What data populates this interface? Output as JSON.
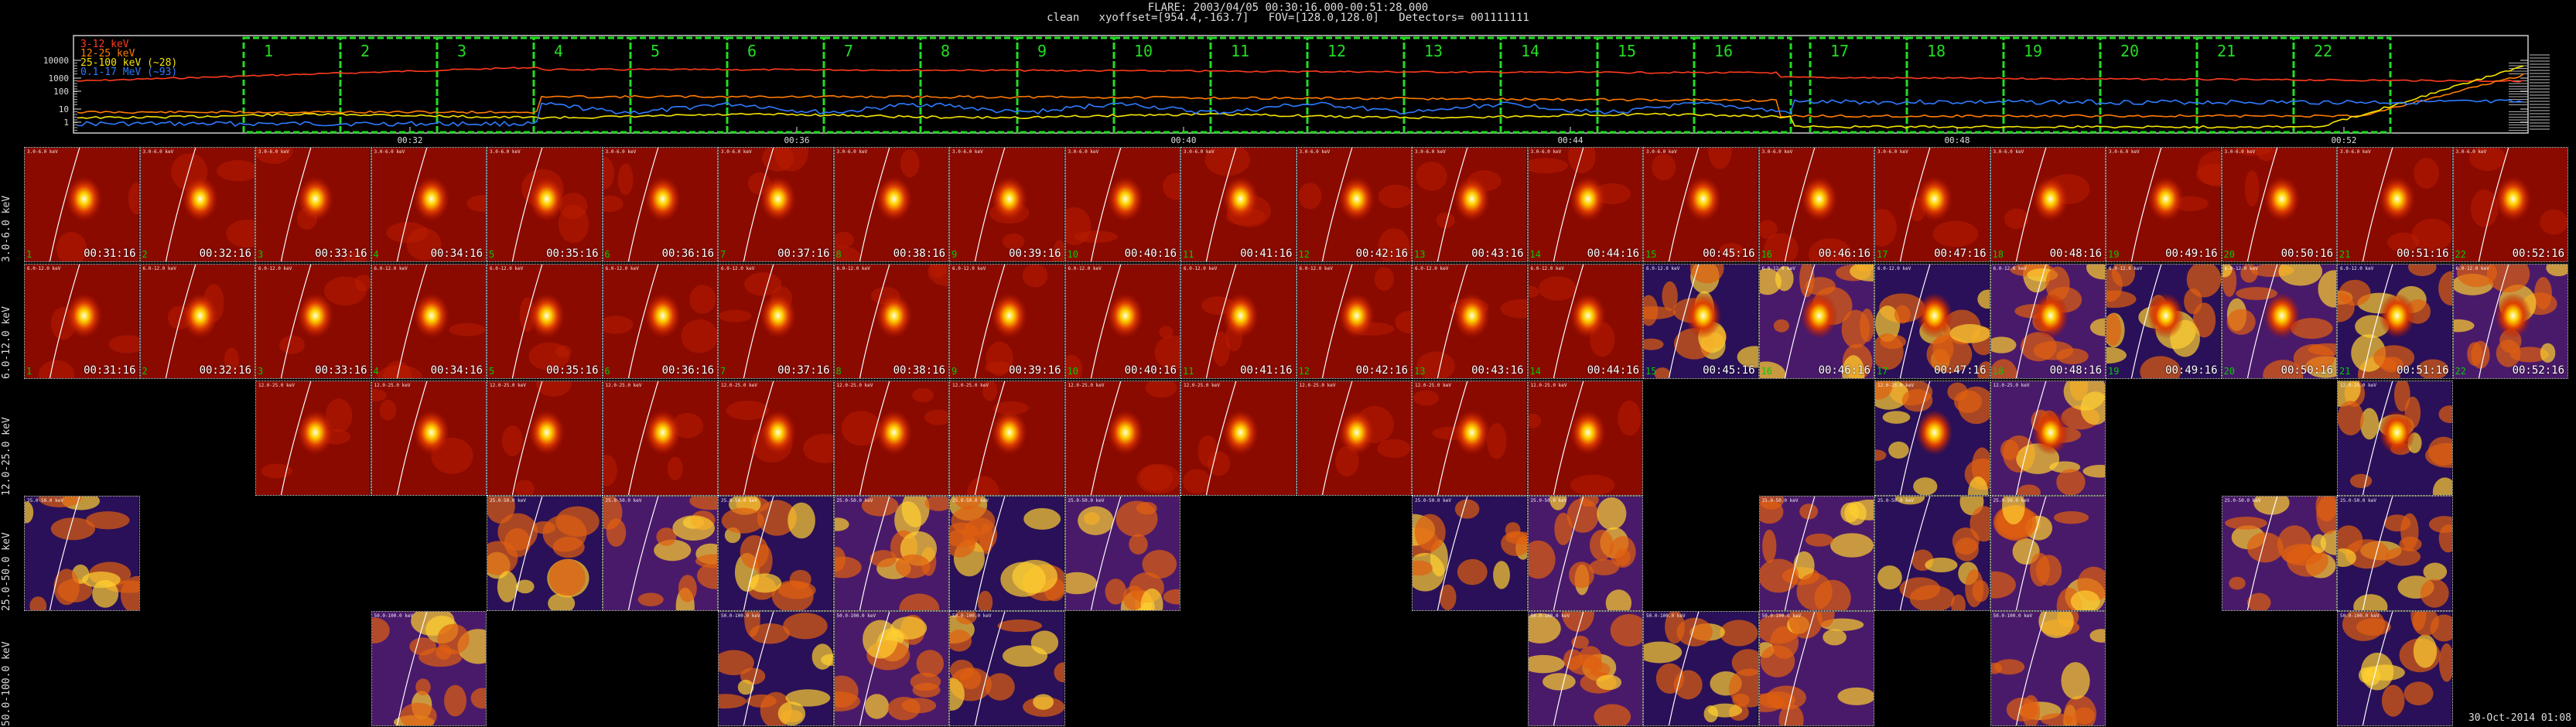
{
  "header": {
    "line1": "FLARE: 2003/04/05 00:30:16.000-00:51:28.000",
    "line2": "clean   xyoffset=[954.4,-163.7]   FOV=[128.0,128.0]   Detectors= 001111111"
  },
  "legend": [
    {
      "label": "3-12 keV",
      "color": "#ff3b1f"
    },
    {
      "label": "12-25 keV",
      "color": "#ff7b00"
    },
    {
      "label": "25-100 keV (~28)",
      "color": "#f4e400"
    },
    {
      "label": "0.1-17 MeV (~93)",
      "color": "#2f7bff"
    }
  ],
  "lightcurve": {
    "y_ticks": [
      "10000",
      "1000",
      "100",
      "10",
      "1"
    ],
    "time_ticks": [
      "00:32",
      "00:36",
      "00:40",
      "00:44",
      "00:48",
      "00:52"
    ],
    "intervals": [
      "1",
      "2",
      "3",
      "4",
      "5",
      "6",
      "7",
      "8",
      "9",
      "10",
      "11",
      "12",
      "13",
      "14",
      "15",
      "16",
      "17",
      "18",
      "19",
      "20",
      "21",
      "22"
    ]
  },
  "energy_bands": [
    "3.0-6.0 keV",
    "6.0-12.0 keV",
    "12.0-25.0 keV",
    "25.0-50.0 keV",
    "50.0-100.0 keV"
  ],
  "times": [
    "00:31:16",
    "00:32:16",
    "00:33:16",
    "00:34:16",
    "00:35:16",
    "00:36:16",
    "00:37:16",
    "00:38:16",
    "00:39:16",
    "00:40:16",
    "00:41:16",
    "00:42:16",
    "00:43:16",
    "00:44:16",
    "00:45:16",
    "00:46:16",
    "00:47:16",
    "00:48:16",
    "00:49:16",
    "00:50:16",
    "00:51:16",
    "00:52:16"
  ],
  "tile_presence": [
    [
      0,
      1,
      2,
      3,
      4,
      5,
      6,
      7,
      8,
      9,
      10,
      11,
      12,
      13,
      14,
      15,
      16,
      17,
      18,
      19,
      20,
      21
    ],
    [
      0,
      1,
      2,
      3,
      4,
      5,
      6,
      7,
      8,
      9,
      10,
      11,
      12,
      13,
      14,
      15,
      16,
      17,
      18,
      19,
      20,
      21
    ],
    [
      2,
      3,
      4,
      5,
      6,
      7,
      8,
      9,
      10,
      11,
      12,
      13,
      16,
      17,
      20
    ],
    [
      0,
      4,
      5,
      6,
      7,
      8,
      9,
      12,
      13,
      15,
      16,
      17,
      19,
      20
    ],
    [
      3,
      6,
      7,
      8,
      13,
      14,
      15,
      17,
      20
    ]
  ],
  "colors": {
    "background": "#000000",
    "interval_box": "#22dd22",
    "tile_border": "#dddddd"
  },
  "footer": {
    "date_stamp": "30-Oct-2014 01:08"
  }
}
